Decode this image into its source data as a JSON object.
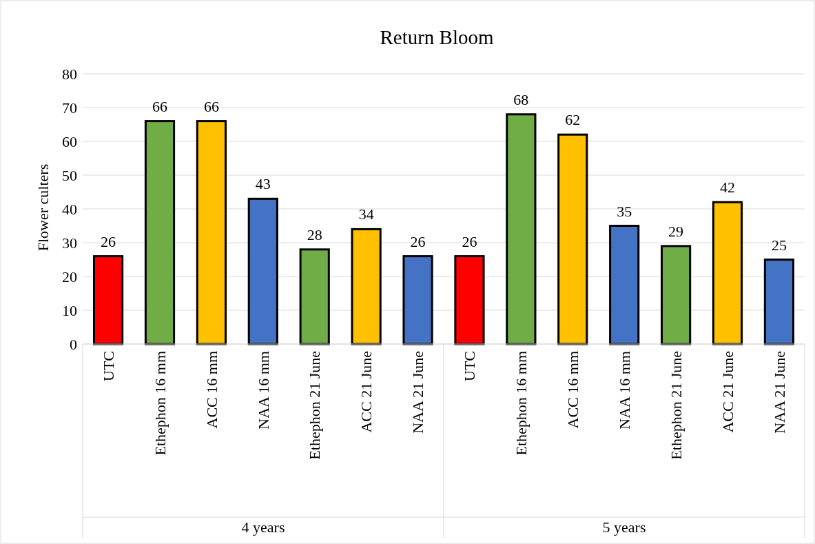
{
  "chart_data": {
    "type": "bar",
    "title": "Return Bloom",
    "ylabel": "Flower culters",
    "categories": [
      "UTC",
      "Ethephon 16 mm",
      "ACC 16 mm",
      "NAA 16 mm",
      "Ethephon 21 June",
      "ACC 21 June",
      "NAA 21 June",
      "UTC",
      "Ethephon 16 mm",
      "ACC 16 mm",
      "NAA 16 mm",
      "Ethephon 21 June",
      "ACC 21 June",
      "NAA 21 June"
    ],
    "values": [
      26,
      66,
      66,
      43,
      28,
      34,
      26,
      26,
      68,
      62,
      35,
      29,
      42,
      25
    ],
    "colors": [
      "#ff0000",
      "#70ad47",
      "#ffc000",
      "#4472c4",
      "#70ad47",
      "#ffc000",
      "#4472c4",
      "#ff0000",
      "#70ad47",
      "#ffc000",
      "#4472c4",
      "#70ad47",
      "#ffc000",
      "#4472c4"
    ],
    "ylim": [
      0,
      80
    ],
    "yticks": [
      0,
      10,
      20,
      30,
      40,
      50,
      60,
      70,
      80
    ],
    "grid": "y",
    "data_labels": true,
    "annotations": [
      "4 years",
      "5 years"
    ]
  }
}
